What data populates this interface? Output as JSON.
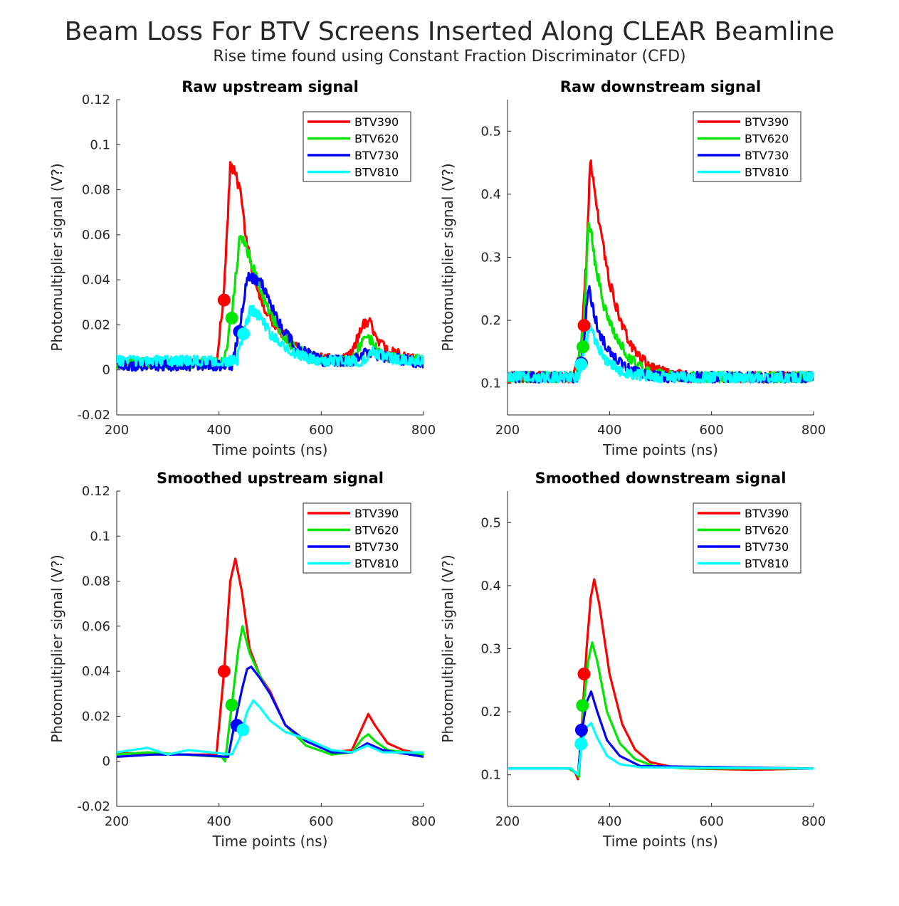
{
  "title": "Beam Loss For BTV Screens Inserted Along CLEAR Beamline",
  "subtitle": "Rise time found using Constant Fraction Discriminator (CFD)",
  "colors": {
    "BTV390": "#ff0000",
    "BTV620": "#00e600",
    "BTV730": "#0000ff",
    "BTV810": "#00ffff"
  },
  "chart_data": [
    {
      "type": "line",
      "title": "Raw upstream signal",
      "xlabel": "Time points (ns)",
      "ylabel": "Photomultiplier signal (V?)",
      "xlim": [
        200,
        800
      ],
      "ylim": [
        -0.02,
        0.12
      ],
      "xticks": [
        "200",
        "400",
        "600",
        "800"
      ],
      "yticks": [
        "-0.02",
        "0",
        "0.02",
        "0.04",
        "0.06",
        "0.08",
        "0.1",
        "0.12"
      ],
      "legend_position": "top-right",
      "noisy": true,
      "series": [
        {
          "name": "BTV390",
          "x": [
            200,
            395,
            410,
            422,
            432,
            442,
            455,
            470,
            490,
            510,
            540,
            570,
            640,
            660,
            680,
            695,
            710,
            740,
            770,
            800
          ],
          "values": [
            0.003,
            0.003,
            0.035,
            0.09,
            0.088,
            0.078,
            0.055,
            0.04,
            0.027,
            0.02,
            0.012,
            0.006,
            0.004,
            0.007,
            0.02,
            0.021,
            0.012,
            0.008,
            0.005,
            0.004
          ],
          "marker": {
            "x": 410,
            "y": 0.031
          }
        },
        {
          "name": "BTV620",
          "x": [
            200,
            410,
            425,
            440,
            448,
            460,
            475,
            495,
            520,
            550,
            600,
            660,
            680,
            695,
            720,
            800
          ],
          "values": [
            0.003,
            0.003,
            0.025,
            0.057,
            0.058,
            0.05,
            0.04,
            0.027,
            0.017,
            0.009,
            0.004,
            0.004,
            0.012,
            0.014,
            0.006,
            0.004
          ],
          "marker": {
            "x": 425,
            "y": 0.023
          }
        },
        {
          "name": "BTV730",
          "x": [
            200,
            425,
            440,
            455,
            470,
            485,
            500,
            520,
            550,
            600,
            660,
            690,
            720,
            800
          ],
          "values": [
            0.002,
            0.002,
            0.018,
            0.042,
            0.04,
            0.038,
            0.03,
            0.02,
            0.01,
            0.004,
            0.004,
            0.008,
            0.006,
            0.003
          ],
          "marker": {
            "x": 440,
            "y": 0.017
          }
        },
        {
          "name": "BTV810",
          "x": [
            200,
            435,
            448,
            462,
            478,
            500,
            530,
            560,
            600,
            680,
            700,
            740,
            800
          ],
          "values": [
            0.004,
            0.004,
            0.016,
            0.027,
            0.024,
            0.016,
            0.01,
            0.006,
            0.004,
            0.004,
            0.008,
            0.005,
            0.004
          ],
          "marker": {
            "x": 448,
            "y": 0.016
          }
        }
      ]
    },
    {
      "type": "line",
      "title": "Raw downstream signal",
      "xlabel": "Time points (ns)",
      "ylabel": "Photomultiplier signal (V?)",
      "xlim": [
        200,
        800
      ],
      "ylim": [
        0.05,
        0.55
      ],
      "xticks": [
        "200",
        "400",
        "600",
        "800"
      ],
      "yticks": [
        "0.1",
        "0.2",
        "0.3",
        "0.4",
        "0.5"
      ],
      "legend_position": "top-right",
      "noisy": true,
      "series": [
        {
          "name": "BTV390",
          "x": [
            200,
            330,
            345,
            355,
            362,
            368,
            380,
            400,
            425,
            450,
            480,
            520,
            560,
            800
          ],
          "values": [
            0.11,
            0.11,
            0.16,
            0.3,
            0.45,
            0.43,
            0.35,
            0.26,
            0.19,
            0.15,
            0.125,
            0.115,
            0.11,
            0.11
          ],
          "marker": {
            "x": 350,
            "y": 0.192
          }
        },
        {
          "name": "BTV620",
          "x": [
            200,
            335,
            350,
            358,
            364,
            372,
            390,
            415,
            440,
            470,
            510,
            560,
            800
          ],
          "values": [
            0.11,
            0.11,
            0.2,
            0.35,
            0.34,
            0.29,
            0.22,
            0.17,
            0.14,
            0.12,
            0.112,
            0.11,
            0.11
          ],
          "marker": {
            "x": 348,
            "y": 0.158
          }
        },
        {
          "name": "BTV730",
          "x": [
            200,
            338,
            350,
            358,
            366,
            380,
            400,
            430,
            460,
            500,
            800
          ],
          "values": [
            0.11,
            0.11,
            0.16,
            0.255,
            0.225,
            0.18,
            0.15,
            0.125,
            0.115,
            0.11,
            0.11
          ],
          "marker": {
            "x": 345,
            "y": 0.132
          }
        },
        {
          "name": "BTV810",
          "x": [
            200,
            338,
            350,
            360,
            370,
            390,
            420,
            450,
            500,
            800
          ],
          "values": [
            0.11,
            0.11,
            0.145,
            0.19,
            0.17,
            0.14,
            0.12,
            0.114,
            0.11,
            0.11
          ],
          "marker": {
            "x": 344,
            "y": 0.13
          }
        }
      ]
    },
    {
      "type": "line",
      "title": "Smoothed upstream signal",
      "xlabel": "Time points (ns)",
      "ylabel": "Photomultiplier signal (V?)",
      "xlim": [
        200,
        800
      ],
      "ylim": [
        -0.02,
        0.12
      ],
      "xticks": [
        "200",
        "400",
        "600",
        "800"
      ],
      "yticks": [
        "-0.02",
        "0",
        "0.02",
        "0.04",
        "0.06",
        "0.08",
        "0.1",
        "0.12"
      ],
      "legend_position": "top-right",
      "noisy": false,
      "series": [
        {
          "name": "BTV390",
          "x": [
            200,
            260,
            330,
            395,
            410,
            422,
            432,
            445,
            460,
            480,
            500,
            530,
            570,
            620,
            660,
            680,
            692,
            705,
            730,
            760,
            800
          ],
          "values": [
            0.004,
            0.003,
            0.003,
            0.003,
            0.04,
            0.08,
            0.09,
            0.075,
            0.05,
            0.038,
            0.031,
            0.016,
            0.009,
            0.004,
            0.005,
            0.015,
            0.021,
            0.016,
            0.008,
            0.005,
            0.003
          ],
          "marker": {
            "x": 410,
            "y": 0.04
          }
        },
        {
          "name": "BTV620",
          "x": [
            200,
            260,
            330,
            405,
            412,
            425,
            438,
            446,
            460,
            480,
            500,
            530,
            570,
            620,
            660,
            680,
            692,
            705,
            730,
            800
          ],
          "values": [
            0.003,
            0.004,
            0.003,
            0.002,
            0.0,
            0.025,
            0.05,
            0.06,
            0.048,
            0.038,
            0.03,
            0.016,
            0.007,
            0.003,
            0.004,
            0.01,
            0.012,
            0.009,
            0.005,
            0.003
          ],
          "marker": {
            "x": 425,
            "y": 0.025
          }
        },
        {
          "name": "BTV730",
          "x": [
            200,
            270,
            340,
            418,
            430,
            445,
            455,
            463,
            480,
            500,
            530,
            570,
            620,
            660,
            690,
            720,
            800
          ],
          "values": [
            0.002,
            0.003,
            0.003,
            0.002,
            0.016,
            0.032,
            0.041,
            0.042,
            0.037,
            0.03,
            0.016,
            0.009,
            0.004,
            0.004,
            0.008,
            0.005,
            0.002
          ],
          "marker": {
            "x": 435,
            "y": 0.016
          }
        },
        {
          "name": "BTV810",
          "x": [
            200,
            260,
            300,
            340,
            425,
            440,
            455,
            467,
            480,
            500,
            530,
            570,
            620,
            660,
            690,
            720,
            800
          ],
          "values": [
            0.004,
            0.006,
            0.003,
            0.005,
            0.003,
            0.01,
            0.022,
            0.027,
            0.024,
            0.018,
            0.013,
            0.01,
            0.005,
            0.004,
            0.007,
            0.004,
            0.004
          ],
          "marker": {
            "x": 447,
            "y": 0.014
          }
        }
      ]
    },
    {
      "type": "line",
      "title": "Smoothed downstream signal",
      "xlabel": "Time points (ns)",
      "ylabel": "Photomultiplier signal (V?)",
      "xlim": [
        200,
        800
      ],
      "ylim": [
        0.05,
        0.55
      ],
      "xticks": [
        "200",
        "400",
        "600",
        "800"
      ],
      "yticks": [
        "0.1",
        "0.2",
        "0.3",
        "0.4",
        "0.5"
      ],
      "legend_position": "top-right",
      "noisy": false,
      "series": [
        {
          "name": "BTV390",
          "x": [
            200,
            320,
            332,
            338,
            345,
            355,
            363,
            370,
            380,
            400,
            425,
            450,
            480,
            520,
            560,
            680,
            800
          ],
          "values": [
            0.11,
            0.11,
            0.105,
            0.093,
            0.17,
            0.3,
            0.38,
            0.41,
            0.37,
            0.26,
            0.18,
            0.14,
            0.12,
            0.113,
            0.11,
            0.108,
            0.11
          ],
          "marker": {
            "x": 350,
            "y": 0.26
          }
        },
        {
          "name": "BTV620",
          "x": [
            200,
            320,
            334,
            340,
            348,
            358,
            366,
            376,
            395,
            420,
            450,
            490,
            560,
            800
          ],
          "values": [
            0.11,
            0.11,
            0.103,
            0.097,
            0.2,
            0.28,
            0.31,
            0.28,
            0.2,
            0.15,
            0.125,
            0.113,
            0.11,
            0.11
          ],
          "marker": {
            "x": 347,
            "y": 0.21
          }
        },
        {
          "name": "BTV730",
          "x": [
            200,
            325,
            338,
            346,
            355,
            364,
            376,
            395,
            420,
            460,
            800
          ],
          "values": [
            0.11,
            0.11,
            0.1,
            0.17,
            0.215,
            0.232,
            0.2,
            0.155,
            0.13,
            0.114,
            0.11
          ],
          "marker": {
            "x": 345,
            "y": 0.171
          }
        },
        {
          "name": "BTV810",
          "x": [
            200,
            325,
            338,
            346,
            355,
            364,
            375,
            395,
            420,
            460,
            800
          ],
          "values": [
            0.11,
            0.11,
            0.1,
            0.15,
            0.175,
            0.182,
            0.16,
            0.13,
            0.117,
            0.112,
            0.11
          ],
          "marker": {
            "x": 344,
            "y": 0.149
          }
        }
      ]
    }
  ]
}
